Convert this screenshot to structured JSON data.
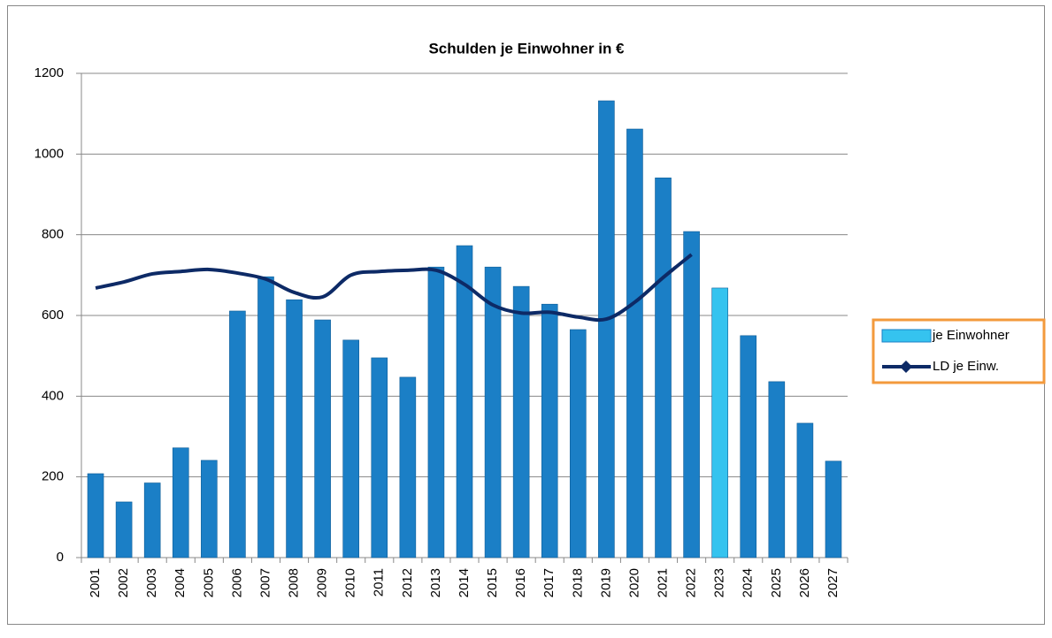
{
  "chart_data": {
    "type": "bar-line",
    "title": "Schulden je Einwohner in €",
    "categories": [
      "2001",
      "2002",
      "2003",
      "2004",
      "2005",
      "2006",
      "2007",
      "2008",
      "2009",
      "2010",
      "2011",
      "2012",
      "2013",
      "2014",
      "2015",
      "2016",
      "2017",
      "2018",
      "2019",
      "2020",
      "2021",
      "2022",
      "2023",
      "2024",
      "2025",
      "2026",
      "2027"
    ],
    "series": [
      {
        "name": "je Einwohner",
        "type": "bar",
        "color": "#1b7fc6",
        "colors": [
          "#1b7fc6",
          "#1b7fc6",
          "#1b7fc6",
          "#1b7fc6",
          "#1b7fc6",
          "#1b7fc6",
          "#1b7fc6",
          "#1b7fc6",
          "#1b7fc6",
          "#1b7fc6",
          "#1b7fc6",
          "#1b7fc6",
          "#1b7fc6",
          "#1b7fc6",
          "#1b7fc6",
          "#1b7fc6",
          "#1b7fc6",
          "#1b7fc6",
          "#1b7fc6",
          "#1b7fc6",
          "#1b7fc6",
          "#1b7fc6",
          "#35c3ef",
          "#1b7fc6",
          "#1b7fc6",
          "#1b7fc6",
          "#1b7fc6"
        ],
        "values": [
          208,
          138,
          185,
          272,
          241,
          611,
          696,
          639,
          589,
          539,
          495,
          447,
          720,
          773,
          720,
          672,
          628,
          565,
          1132,
          1062,
          941,
          808,
          668,
          550,
          436,
          333,
          239
        ]
      },
      {
        "name": "LD je Einw.",
        "type": "line",
        "color": "#0d2a66",
        "values": [
          668,
          683,
          703,
          709,
          714,
          705,
          690,
          657,
          646,
          700,
          709,
          712,
          712,
          677,
          626,
          606,
          608,
          596,
          591,
          633,
          694,
          751,
          null,
          null,
          null,
          null,
          null
        ]
      }
    ],
    "ylim": [
      0,
      1200
    ],
    "yticks": [
      0,
      200,
      400,
      600,
      800,
      1000,
      1200
    ],
    "grid": true,
    "legend": "right"
  }
}
